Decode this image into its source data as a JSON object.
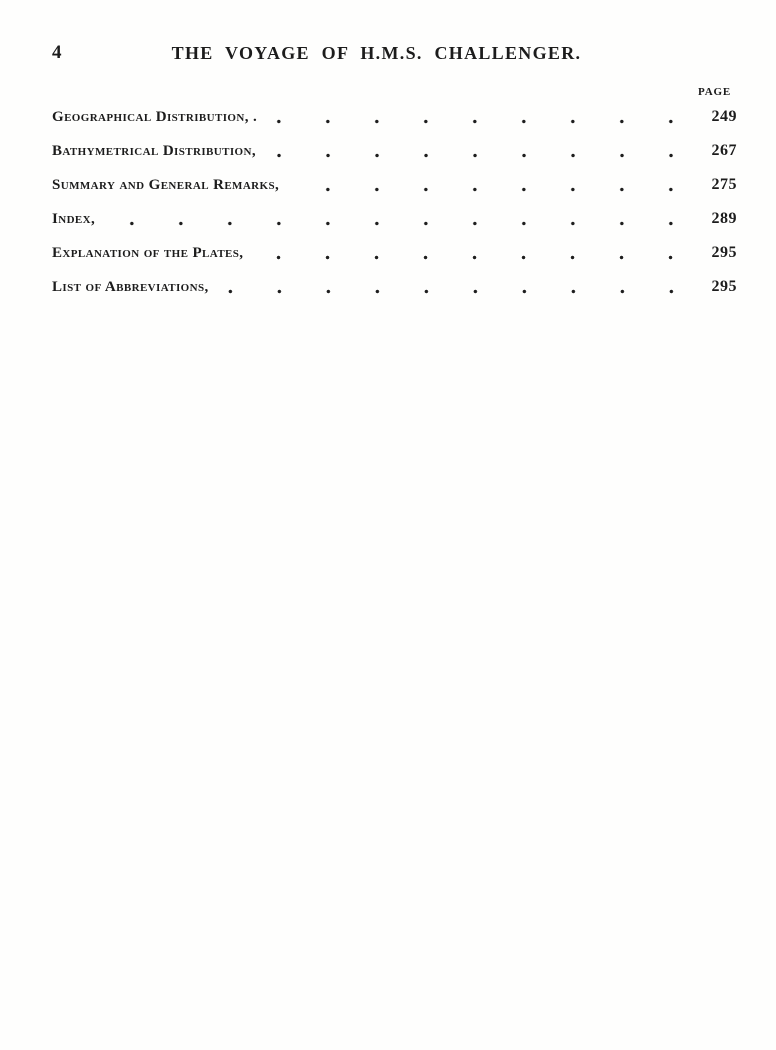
{
  "page": {
    "folio": "4",
    "running_title": "THE VOYAGE OF H.M.S. CHALLENGER.",
    "column_header": "PAGE",
    "entries": [
      {
        "label": "Geographical Distribution, .",
        "page": "249"
      },
      {
        "label": "Bathymetrical Distribution,",
        "page": "267"
      },
      {
        "label": "Summary and General Remarks,",
        "page": "275"
      },
      {
        "label": "Index,",
        "page": "289"
      },
      {
        "label": "Explanation of the Plates,",
        "page": "295"
      },
      {
        "label": "List of Abbreviations,",
        "page": "295"
      }
    ]
  }
}
